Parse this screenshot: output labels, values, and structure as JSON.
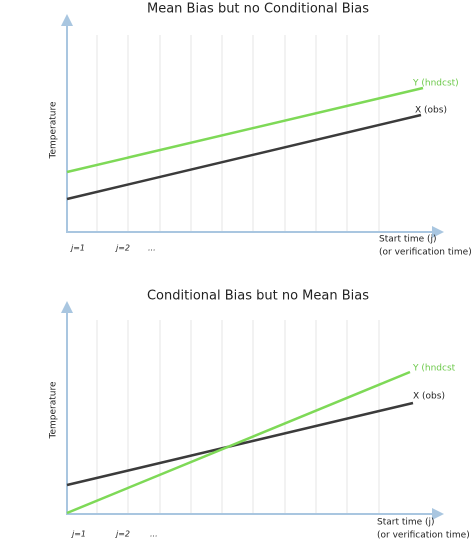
{
  "panels": [
    {
      "title": "Mean Bias but no Conditional Bias",
      "y_label": "Temperature",
      "y_series_label": "Y (hndcst)",
      "x_series_label": "X (obs)",
      "x_label": [
        "Start time (j)",
        "(or verification time)"
      ],
      "ticks": [
        "j=1",
        "j=2",
        "..."
      ]
    },
    {
      "title": "Conditional Bias but no Mean Bias",
      "y_label": "Temperature",
      "y_series_label": "Y (hndcst",
      "x_series_label": "X (obs)",
      "x_label": [
        "Start time (j)",
        "(or verification time)"
      ],
      "ticks": [
        "j=1",
        "j=2",
        "..."
      ]
    }
  ]
}
